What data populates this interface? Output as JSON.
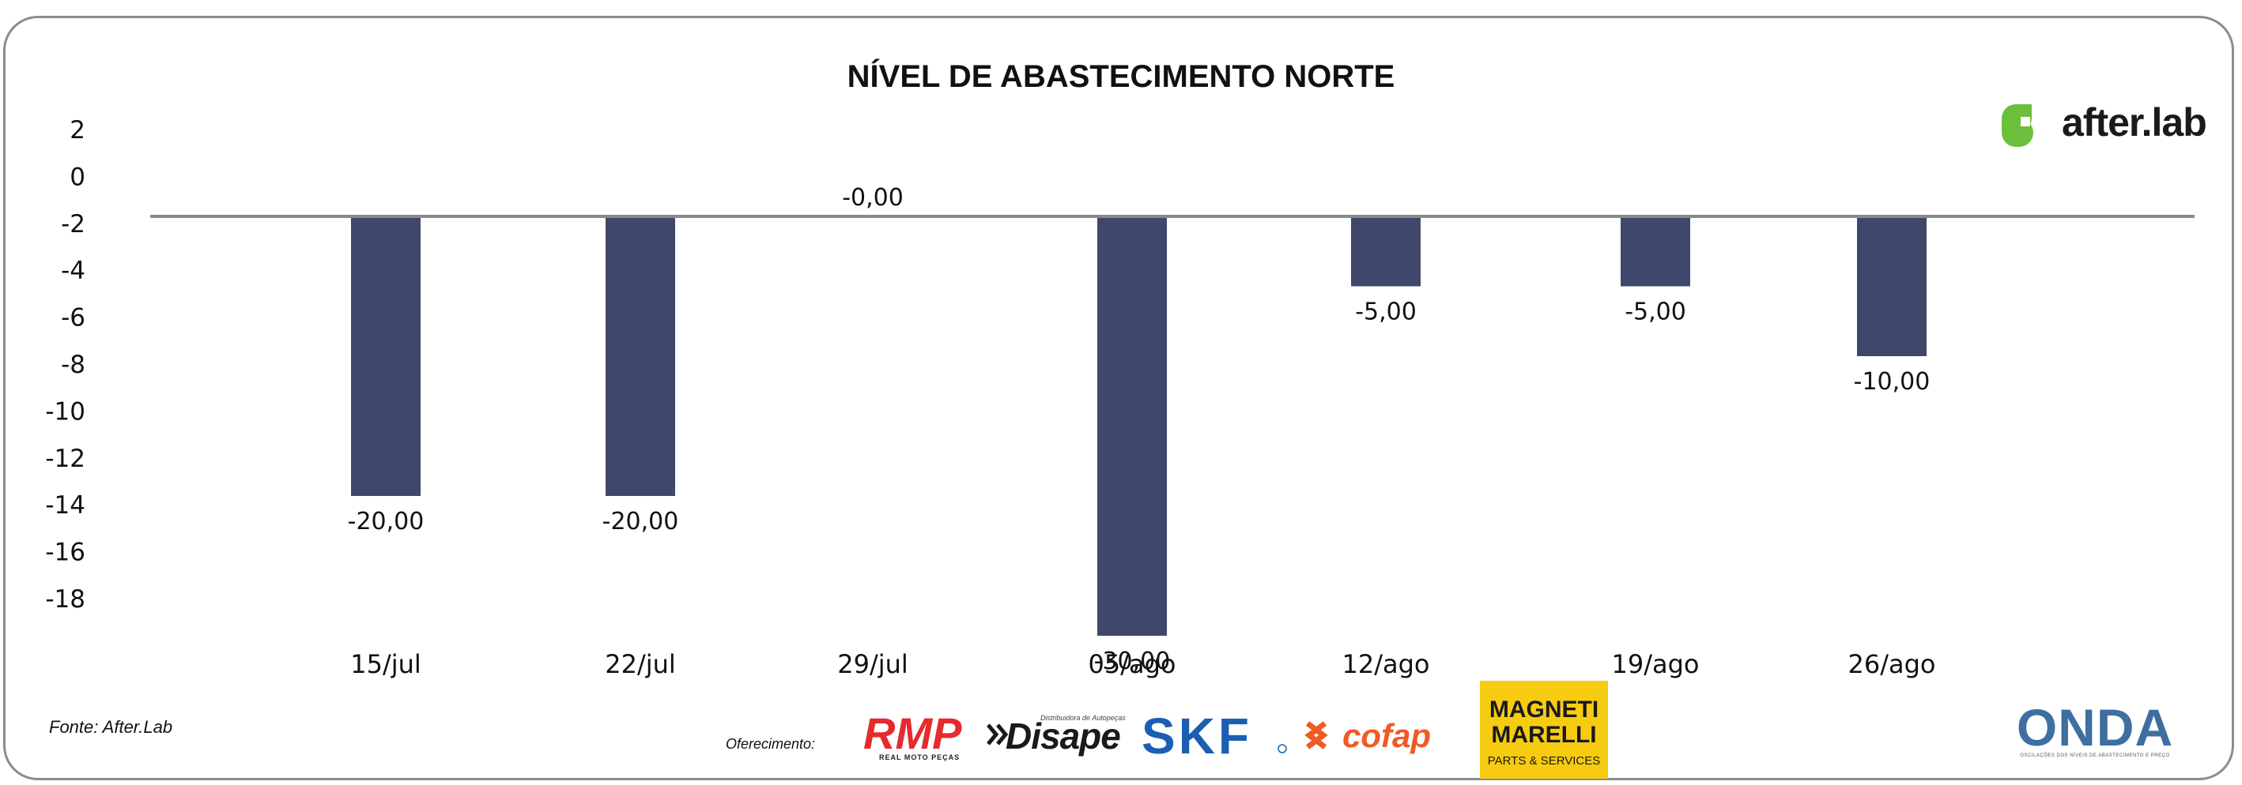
{
  "chart_data": {
    "type": "bar",
    "title": "NÍVEL DE ABASTECIMENTO NORTE",
    "categories": [
      "15/jul",
      "22/jul",
      "29/jul",
      "05/ago",
      "12/ago",
      "19/ago",
      "26/ago"
    ],
    "values": [
      -20,
      -20,
      0,
      -30,
      -5,
      -5,
      -10
    ],
    "data_labels": [
      "-20,00",
      "-20,00",
      "-0,00",
      "-30,00",
      "-5,00",
      "-5,00",
      "-10,00"
    ],
    "yticks": [
      "2",
      "0",
      "-2",
      "-4",
      "-6",
      "-8",
      "-10",
      "-12",
      "-14",
      "-16",
      "-18"
    ],
    "bar_color": "#3f476b",
    "axis_color": "#8a8a8a",
    "grid": false,
    "legend": "none"
  },
  "footer": {
    "source": "Fonte: After.Lab",
    "offer_label": "Oferecimento:"
  },
  "brands": {
    "afterlab": "after.lab",
    "afterlab_color": "#6cbf3d",
    "rmp": "RMP",
    "rmp_sub": "REAL MOTO PEÇAS",
    "disape": "Disape",
    "disape_sub": "Distribuidora de Autopeças",
    "skf": "SKF",
    "cofap": "cofap",
    "magneti_line1": "MAGNETI",
    "magneti_line2": "MARELLI",
    "magneti_sub": "PARTS & SERVICES",
    "magneti_bg": "#f7cc10",
    "onda": "ONDA",
    "onda_sub": "OSCILAÇÕES DOS NÍVEIS DE ABASTECIMENTO E PREÇO"
  }
}
